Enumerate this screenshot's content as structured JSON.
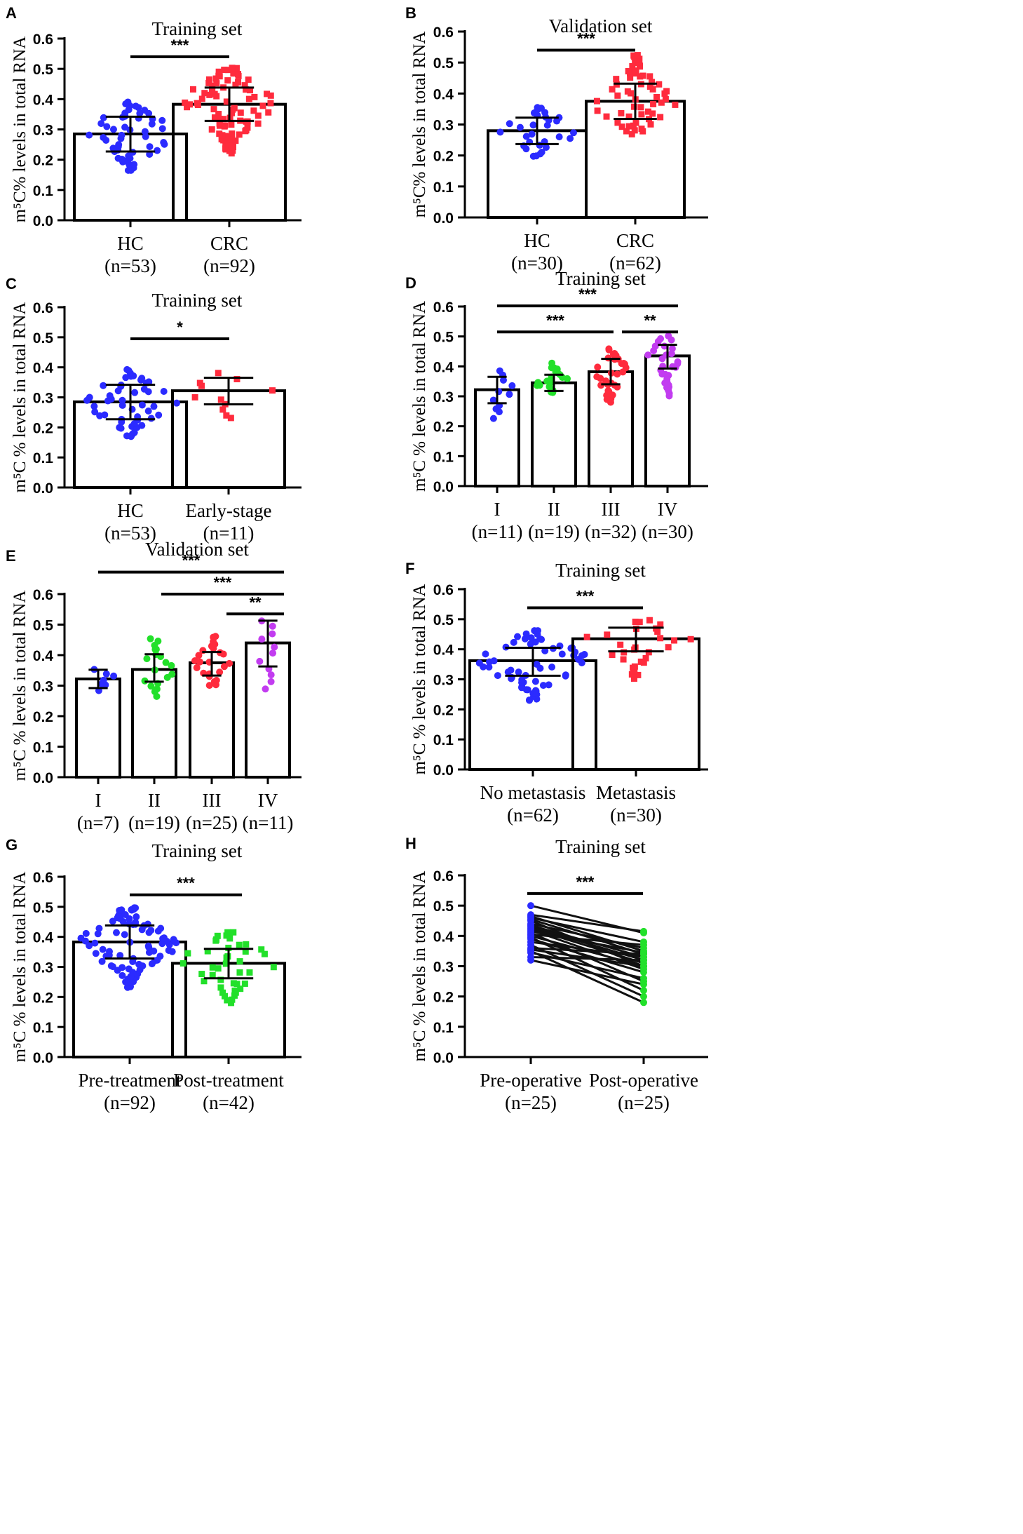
{
  "figure": {
    "colors": {
      "blue": "#2b2bff",
      "red": "#ff2b3d",
      "green": "#22e02a",
      "purple": "#c23cf0",
      "axis": "#000000"
    }
  },
  "chart_data": [
    {
      "panel": "A",
      "type": "bar",
      "title": "Training set",
      "ylabel": "m⁵C% levels in total RNA",
      "ylim": [
        0,
        0.6
      ],
      "yticks": [
        "0.0",
        "0.1",
        "0.2",
        "0.3",
        "0.4",
        "0.5",
        "0.6"
      ],
      "categories": [
        {
          "name": "HC",
          "n": "(n=53)",
          "mean": 0.285,
          "sd_low": 0.227,
          "sd_high": 0.342,
          "count": 53,
          "color": "blue",
          "marker": "circle",
          "min": 0.165,
          "max": 0.39
        },
        {
          "name": "CRC",
          "n": "(n=92)",
          "mean": 0.383,
          "sd_low": 0.328,
          "sd_high": 0.438,
          "count": 92,
          "color": "red",
          "marker": "square",
          "min": 0.225,
          "max": 0.5
        }
      ],
      "significance": [
        {
          "from": 0,
          "to": 1,
          "label": "***",
          "y": 0.54
        }
      ]
    },
    {
      "panel": "B",
      "type": "bar",
      "title": "Validation set",
      "ylabel": "m⁵C% levels in total RNA",
      "ylim": [
        0,
        0.6
      ],
      "yticks": [
        "0.0",
        "0.1",
        "0.2",
        "0.3",
        "0.4",
        "0.5",
        "0.6"
      ],
      "categories": [
        {
          "name": "HC",
          "n": "(n=30)",
          "mean": 0.28,
          "sd_low": 0.237,
          "sd_high": 0.322,
          "count": 30,
          "color": "blue",
          "marker": "circle",
          "min": 0.195,
          "max": 0.36
        },
        {
          "name": "CRC",
          "n": "(n=62)",
          "mean": 0.375,
          "sd_low": 0.318,
          "sd_high": 0.432,
          "count": 62,
          "color": "red",
          "marker": "square",
          "min": 0.27,
          "max": 0.525
        }
      ],
      "significance": [
        {
          "from": 0,
          "to": 1,
          "label": "***",
          "y": 0.54
        }
      ]
    },
    {
      "panel": "C",
      "type": "bar",
      "title": "Training set",
      "ylabel": "m⁵C % levels in total RNA",
      "ylim": [
        0,
        0.6
      ],
      "yticks": [
        "0.0",
        "0.1",
        "0.2",
        "0.3",
        "0.4",
        "0.5",
        "0.6"
      ],
      "categories": [
        {
          "name": "HC",
          "n": "(n=53)",
          "mean": 0.285,
          "sd_low": 0.227,
          "sd_high": 0.342,
          "count": 53,
          "color": "blue",
          "marker": "circle",
          "min": 0.165,
          "max": 0.39
        },
        {
          "name": "Early-stage",
          "n": "(n=11)",
          "mean": 0.322,
          "sd_low": 0.277,
          "sd_high": 0.365,
          "count": 11,
          "color": "red",
          "marker": "square",
          "min": 0.23,
          "max": 0.38
        }
      ],
      "significance": [
        {
          "from": 0,
          "to": 1,
          "label": "*",
          "y": 0.495
        }
      ]
    },
    {
      "panel": "D",
      "type": "bar",
      "title": "Training set",
      "ylabel": "m⁵C % levels in total RNA",
      "ylim": [
        0,
        0.6
      ],
      "yticks": [
        "0.0",
        "0.1",
        "0.2",
        "0.3",
        "0.4",
        "0.5",
        "0.6"
      ],
      "categories": [
        {
          "name": "I",
          "n": "(n=11)",
          "mean": 0.322,
          "sd_low": 0.277,
          "sd_high": 0.365,
          "count": 11,
          "color": "blue",
          "marker": "circle",
          "min": 0.23,
          "max": 0.38
        },
        {
          "name": "II",
          "n": "(n=19)",
          "mean": 0.345,
          "sd_low": 0.318,
          "sd_high": 0.372,
          "count": 19,
          "color": "green",
          "marker": "circle",
          "min": 0.31,
          "max": 0.405
        },
        {
          "name": "III",
          "n": "(n=32)",
          "mean": 0.382,
          "sd_low": 0.34,
          "sd_high": 0.425,
          "count": 32,
          "color": "red",
          "marker": "circle",
          "min": 0.28,
          "max": 0.46
        },
        {
          "name": "IV",
          "n": "(n=30)",
          "mean": 0.435,
          "sd_low": 0.393,
          "sd_high": 0.472,
          "count": 30,
          "color": "purple",
          "marker": "circle",
          "min": 0.305,
          "max": 0.5
        }
      ],
      "significance": [
        {
          "from": 0,
          "to": 3,
          "label": "***",
          "y": 0.602
        },
        {
          "from": 0,
          "to": 2,
          "label": "***",
          "y": 0.515
        },
        {
          "from": 2,
          "to": 3,
          "label": "**",
          "y": 0.515
        }
      ]
    },
    {
      "panel": "E",
      "type": "bar",
      "title": "Validation set",
      "ylabel": "m⁵C % levels in total RNA",
      "ylim": [
        0,
        0.6
      ],
      "yticks": [
        "0.0",
        "0.1",
        "0.2",
        "0.3",
        "0.4",
        "0.5",
        "0.6"
      ],
      "categories": [
        {
          "name": "I",
          "n": "(n=7)",
          "mean": 0.322,
          "sd_low": 0.292,
          "sd_high": 0.352,
          "count": 7,
          "color": "blue",
          "marker": "circle",
          "min": 0.285,
          "max": 0.355
        },
        {
          "name": "II",
          "n": "(n=19)",
          "mean": 0.353,
          "sd_low": 0.313,
          "sd_high": 0.403,
          "count": 19,
          "color": "green",
          "marker": "circle",
          "min": 0.27,
          "max": 0.455
        },
        {
          "name": "III",
          "n": "(n=25)",
          "mean": 0.375,
          "sd_low": 0.333,
          "sd_high": 0.41,
          "count": 25,
          "color": "red",
          "marker": "circle",
          "min": 0.3,
          "max": 0.46
        },
        {
          "name": "IV",
          "n": "(n=11)",
          "mean": 0.44,
          "sd_low": 0.363,
          "sd_high": 0.513,
          "count": 11,
          "color": "purple",
          "marker": "circle",
          "min": 0.29,
          "max": 0.515
        }
      ],
      "significance": [
        {
          "from": 0,
          "to": 3,
          "label": "***",
          "y": 0.672
        },
        {
          "from": 1,
          "to": 3,
          "label": "***",
          "y": 0.6
        },
        {
          "from": 2,
          "to": 3,
          "label": "**",
          "y": 0.535
        }
      ]
    },
    {
      "panel": "F",
      "type": "bar",
      "title": "Training set",
      "ylabel": "m⁵C % levels in total RNA",
      "ylim": [
        0,
        0.6
      ],
      "yticks": [
        "0.0",
        "0.1",
        "0.2",
        "0.3",
        "0.4",
        "0.5",
        "0.6"
      ],
      "categories": [
        {
          "name": "No metastasis",
          "n": "(n=62)",
          "mean": 0.362,
          "sd_low": 0.312,
          "sd_high": 0.405,
          "count": 62,
          "color": "blue",
          "marker": "circle",
          "min": 0.23,
          "max": 0.46
        },
        {
          "name": "Metastasis",
          "n": "(n=30)",
          "mean": 0.435,
          "sd_low": 0.393,
          "sd_high": 0.472,
          "count": 30,
          "color": "red",
          "marker": "square",
          "min": 0.305,
          "max": 0.5
        }
      ],
      "significance": [
        {
          "from": 0,
          "to": 1,
          "label": "***",
          "y": 0.538
        }
      ]
    },
    {
      "panel": "G",
      "type": "bar",
      "title": "Training set",
      "ylabel": "m⁵C % levels in total RNA",
      "ylim": [
        0,
        0.6
      ],
      "yticks": [
        "0.0",
        "0.1",
        "0.2",
        "0.3",
        "0.4",
        "0.5",
        "0.6"
      ],
      "categories": [
        {
          "name": "Pre-treatment",
          "n": "(n=92)",
          "mean": 0.383,
          "sd_low": 0.328,
          "sd_high": 0.438,
          "count": 92,
          "color": "blue",
          "marker": "circle",
          "min": 0.23,
          "max": 0.5
        },
        {
          "name": "Post-treatment",
          "n": "(n=42)",
          "mean": 0.312,
          "sd_low": 0.262,
          "sd_high": 0.36,
          "count": 42,
          "color": "green",
          "marker": "square",
          "min": 0.18,
          "max": 0.42
        }
      ],
      "significance": [
        {
          "from": 0,
          "to": 1,
          "label": "***",
          "y": 0.54
        }
      ]
    },
    {
      "panel": "H",
      "type": "line",
      "title": "Training set",
      "ylabel": "m⁵C % levels in total RNA",
      "ylim": [
        0,
        0.6
      ],
      "yticks": [
        "0.0",
        "0.1",
        "0.2",
        "0.3",
        "0.4",
        "0.5",
        "0.6"
      ],
      "categories": [
        {
          "name": "Pre-operative",
          "n": "(n=25)",
          "color": "blue"
        },
        {
          "name": "Post-operative",
          "n": "(n=25)",
          "color": "green"
        }
      ],
      "pairs": [
        [
          0.5,
          0.41
        ],
        [
          0.47,
          0.415
        ],
        [
          0.465,
          0.35
        ],
        [
          0.46,
          0.38
        ],
        [
          0.455,
          0.34
        ],
        [
          0.45,
          0.3
        ],
        [
          0.44,
          0.36
        ],
        [
          0.435,
          0.33
        ],
        [
          0.43,
          0.32
        ],
        [
          0.425,
          0.31
        ],
        [
          0.42,
          0.29
        ],
        [
          0.415,
          0.345
        ],
        [
          0.41,
          0.25
        ],
        [
          0.405,
          0.37
        ],
        [
          0.4,
          0.3
        ],
        [
          0.395,
          0.22
        ],
        [
          0.39,
          0.28
        ],
        [
          0.38,
          0.33
        ],
        [
          0.37,
          0.2
        ],
        [
          0.36,
          0.34
        ],
        [
          0.355,
          0.3
        ],
        [
          0.35,
          0.18
        ],
        [
          0.345,
          0.26
        ],
        [
          0.33,
          0.32
        ],
        [
          0.32,
          0.24
        ]
      ],
      "significance": [
        {
          "from": 0,
          "to": 1,
          "label": "***",
          "y": 0.54
        }
      ]
    }
  ]
}
